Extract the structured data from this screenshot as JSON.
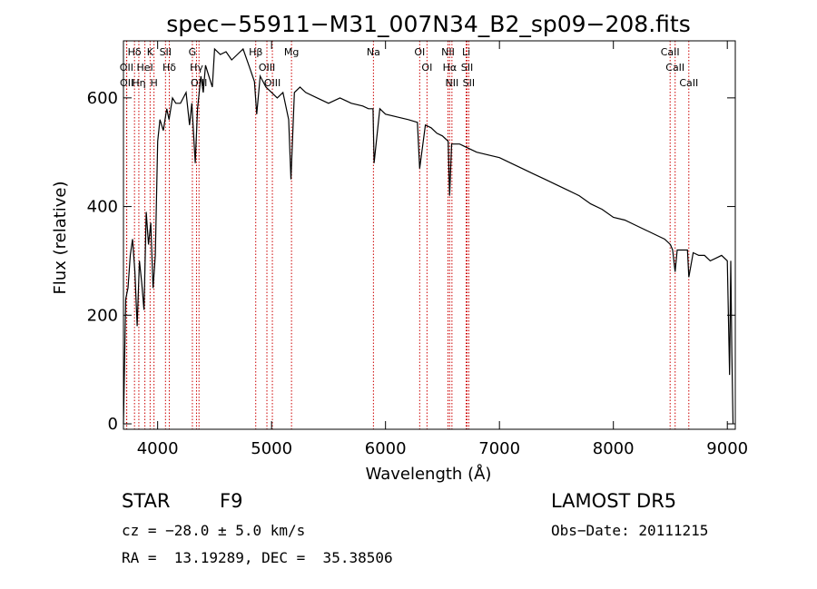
{
  "chart_data": {
    "type": "line",
    "title": "spec−55911−M31_007N34_B2_sp09−208.fits",
    "xlabel": "Wavelength (Å)",
    "ylabel": "Flux (relative)",
    "xlim": [
      3700,
      9070
    ],
    "ylim": [
      -10,
      705
    ],
    "x_ticks": [
      4000,
      5000,
      6000,
      7000,
      8000,
      9000
    ],
    "y_ticks": [
      0,
      200,
      400,
      600
    ],
    "grid": false,
    "legend": "none",
    "line_color": "#000000",
    "marker_line_color": "#cc0000",
    "series": [
      {
        "x": [
          3700,
          3720,
          3740,
          3760,
          3780,
          3800,
          3820,
          3840,
          3860,
          3880,
          3900,
          3920,
          3940,
          3960,
          3980,
          4000,
          4020,
          4050,
          4080,
          4100,
          4130,
          4160,
          4200,
          4250,
          4280,
          4300,
          4330,
          4350,
          4380,
          4400,
          4420,
          4450,
          4480,
          4500,
          4550,
          4600,
          4650,
          4700,
          4750,
          4800,
          4850,
          4870,
          4900,
          4950,
          5000,
          5050,
          5100,
          5150,
          5170,
          5200,
          5250,
          5300,
          5400,
          5500,
          5600,
          5700,
          5800,
          5850,
          5890,
          5900,
          5950,
          6000,
          6100,
          6200,
          6280,
          6300,
          6350,
          6400,
          6450,
          6500,
          6550,
          6563,
          6580,
          6650,
          6700,
          6800,
          6900,
          7000,
          7100,
          7200,
          7300,
          7400,
          7500,
          7600,
          7700,
          7800,
          7900,
          8000,
          8100,
          8200,
          8300,
          8400,
          8450,
          8500,
          8520,
          8542,
          8560,
          8600,
          8650,
          8662,
          8700,
          8750,
          8800,
          8850,
          8900,
          8950,
          9000,
          9020,
          9030,
          9040,
          9050
        ],
        "y": [
          0,
          230,
          250,
          310,
          340,
          280,
          180,
          300,
          260,
          210,
          390,
          330,
          370,
          250,
          310,
          520,
          560,
          540,
          580,
          560,
          600,
          590,
          590,
          610,
          550,
          590,
          480,
          580,
          640,
          610,
          660,
          640,
          620,
          690,
          680,
          685,
          670,
          680,
          690,
          660,
          630,
          570,
          640,
          620,
          610,
          600,
          610,
          560,
          450,
          610,
          620,
          610,
          600,
          590,
          600,
          590,
          585,
          580,
          580,
          480,
          580,
          570,
          565,
          560,
          555,
          470,
          550,
          545,
          535,
          530,
          520,
          420,
          515,
          515,
          510,
          500,
          495,
          490,
          480,
          470,
          460,
          450,
          440,
          430,
          420,
          405,
          395,
          380,
          375,
          365,
          355,
          345,
          340,
          330,
          320,
          280,
          320,
          320,
          320,
          270,
          315,
          310,
          310,
          300,
          305,
          310,
          300,
          90,
          300,
          130,
          0
        ]
      }
    ],
    "lines": [
      {
        "label": "Hδ",
        "x": 3797
      },
      {
        "label": "OII",
        "x": 3727
      },
      {
        "label": "OII",
        "x": 3729
      },
      {
        "label": "Hη",
        "x": 3835
      },
      {
        "label": "HeI",
        "x": 3888
      },
      {
        "label": "K",
        "x": 3934
      },
      {
        "label": "H",
        "x": 3968
      },
      {
        "label": "SII",
        "x": 4069
      },
      {
        "label": "Hδ",
        "x": 4102
      },
      {
        "label": "G",
        "x": 4305
      },
      {
        "label": "Hγ",
        "x": 4341
      },
      {
        "label": "OIII",
        "x": 4363
      },
      {
        "label": "Hβ",
        "x": 4861
      },
      {
        "label": "OIII",
        "x": 4959
      },
      {
        "label": "OIII",
        "x": 5007
      },
      {
        "label": "Mg",
        "x": 5175
      },
      {
        "label": "Na",
        "x": 5894
      },
      {
        "label": "OI",
        "x": 6300
      },
      {
        "label": "OI",
        "x": 6364
      },
      {
        "label": "NII",
        "x": 6548
      },
      {
        "label": "Hα",
        "x": 6563
      },
      {
        "label": "NII",
        "x": 6583
      },
      {
        "label": "Li",
        "x": 6708
      },
      {
        "label": "SII",
        "x": 6716
      },
      {
        "label": "SII",
        "x": 6731
      },
      {
        "label": "CaII",
        "x": 8498
      },
      {
        "label": "CaII",
        "x": 8542
      },
      {
        "label": "CaII",
        "x": 8662
      }
    ]
  },
  "info": {
    "class_label": "STAR",
    "subclass": "F9",
    "survey": "LAMOST DR5",
    "cz": "cz = −28.0 ± 5.0 km/s",
    "obs_date": "Obs−Date: 20111215",
    "coords": "RA =  13.19289, DEC =  35.38506"
  }
}
